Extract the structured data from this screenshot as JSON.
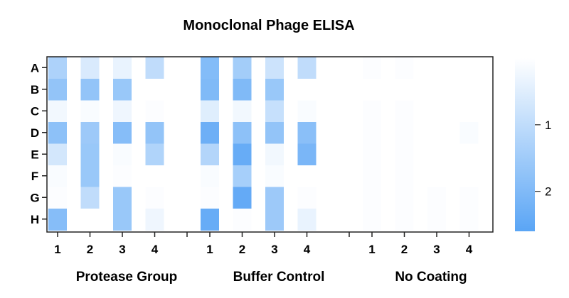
{
  "chart_data": {
    "type": "heatmap",
    "title": "Monoclonal Phage ELISA",
    "rows": [
      "A",
      "B",
      "C",
      "D",
      "E",
      "F",
      "G",
      "H"
    ],
    "groups": [
      {
        "name": "Protease Group",
        "columns": [
          "1",
          "2",
          "3",
          "4"
        ]
      },
      {
        "name": "Buffer Control",
        "columns": [
          "1",
          "2",
          "3",
          "4"
        ]
      },
      {
        "name": "No Coating",
        "columns": [
          "1",
          "2",
          "3",
          "4"
        ]
      }
    ],
    "values": [
      [
        1.3,
        0.6,
        0.35,
        1.0,
        1.95,
        1.45,
        0.8,
        1.0,
        0.05,
        0.05,
        0.0,
        0.0
      ],
      [
        1.7,
        1.7,
        1.6,
        0.0,
        2.0,
        2.0,
        1.6,
        0.0,
        0.0,
        0.0,
        0.0,
        0.0
      ],
      [
        0.2,
        0.1,
        0.25,
        0.05,
        0.5,
        0.2,
        0.9,
        0.1,
        0.05,
        0.05,
        0.0,
        0.0
      ],
      [
        1.8,
        1.55,
        1.9,
        1.7,
        2.3,
        1.8,
        1.7,
        1.85,
        0.05,
        0.05,
        0.0,
        0.1
      ],
      [
        0.7,
        1.6,
        0.1,
        1.25,
        1.2,
        2.4,
        0.2,
        2.1,
        0.05,
        0.05,
        0.0,
        0.0
      ],
      [
        0.1,
        1.6,
        0.05,
        0.0,
        0.1,
        1.4,
        0.1,
        0.0,
        0.05,
        0.05,
        0.0,
        0.0
      ],
      [
        0.05,
        1.0,
        1.6,
        0.05,
        0.05,
        2.45,
        1.55,
        0.05,
        0.05,
        0.05,
        0.05,
        0.05
      ],
      [
        1.9,
        0.0,
        1.6,
        0.25,
        2.4,
        0.05,
        1.55,
        0.35,
        0.05,
        0.05,
        0.05,
        0.05
      ]
    ],
    "colorbar": {
      "range": [
        0,
        2.6
      ],
      "ticks": [
        1,
        2
      ],
      "low_color": "#ffffff",
      "high_color": "#5aa5f5"
    },
    "grid": false
  }
}
